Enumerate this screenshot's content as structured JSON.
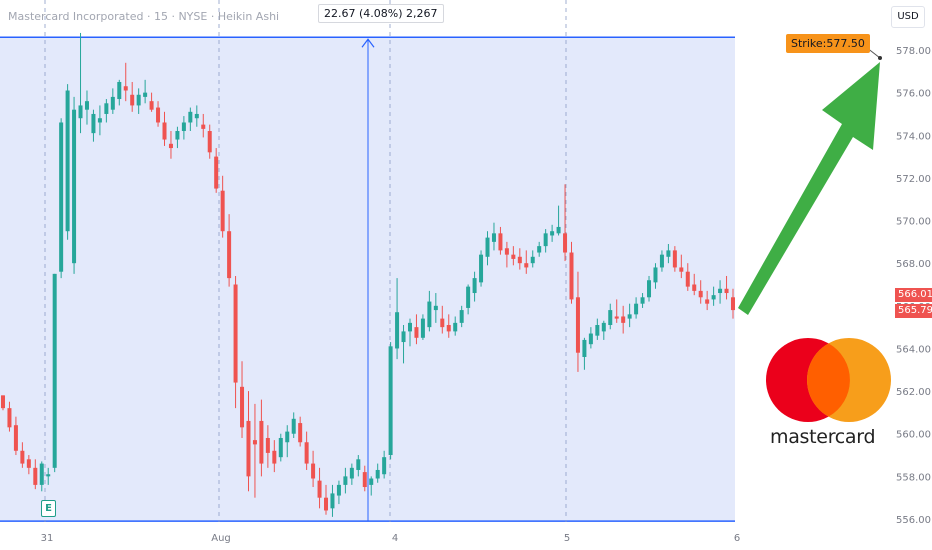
{
  "header": {
    "title": "Mastercard Incorporated · 15 · NYSE · Heikin Ashi",
    "currency": "USD"
  },
  "measure_label": "22.67 (4.08%) 2,267",
  "strike_label": "Strike:577.50",
  "price_tags": [
    "566.01",
    "565.79"
  ],
  "earnings_badge": "E",
  "logo": {
    "word": "mastercard",
    "colors": [
      "#eb001b",
      "#f79e1b",
      "#ff5f00"
    ]
  },
  "colors": {
    "up": "#26a69a",
    "down": "#ef5350",
    "range": "#2962ff",
    "arrow": "#3fae45",
    "strike": "#f7931a"
  },
  "chart_data": {
    "type": "candlestick",
    "title": "Mastercard Incorporated · 15 · NYSE · Heikin Ashi",
    "x_tick_labels": [
      "31",
      "Aug",
      "4",
      "5",
      "6"
    ],
    "y_tick_labels": [
      "578.00",
      "576.00",
      "574.00",
      "572.00",
      "570.00",
      "568.00",
      "566.00",
      "564.00",
      "562.00",
      "560.00",
      "558.00",
      "556.00"
    ],
    "ylim": [
      556,
      579.5
    ],
    "measured_range": {
      "low": 555.9,
      "high": 578.6,
      "change": 22.67,
      "percent": "4.08%",
      "bars": 2267
    },
    "strike": 577.5,
    "last_price": 566.01,
    "grid": false,
    "candles": [
      [
        561.8,
        561.8,
        561.1,
        561.2
      ],
      [
        561.2,
        561.5,
        560.1,
        560.3
      ],
      [
        560.4,
        560.8,
        559.0,
        559.2
      ],
      [
        559.2,
        559.6,
        558.4,
        558.6
      ],
      [
        558.8,
        559.0,
        558.1,
        558.4
      ],
      [
        558.4,
        558.8,
        557.4,
        557.6
      ],
      [
        557.6,
        558.7,
        557.3,
        558.6
      ],
      [
        558.0,
        558.4,
        557.6,
        558.1
      ],
      [
        558.4,
        567.5,
        558.2,
        567.5
      ],
      [
        567.6,
        574.8,
        567.3,
        574.6
      ],
      [
        569.5,
        576.4,
        569.1,
        576.1
      ],
      [
        568.0,
        575.8,
        567.5,
        575.2
      ],
      [
        574.8,
        578.8,
        574.1,
        575.4
      ],
      [
        575.2,
        576.1,
        574.5,
        575.6
      ],
      [
        574.1,
        575.2,
        573.7,
        575.0
      ],
      [
        574.6,
        575.4,
        574.0,
        574.8
      ],
      [
        575.0,
        575.7,
        574.6,
        575.5
      ],
      [
        575.2,
        576.2,
        575.0,
        575.8
      ],
      [
        575.7,
        576.6,
        575.4,
        576.5
      ],
      [
        576.3,
        577.4,
        575.6,
        576.1
      ],
      [
        575.9,
        576.5,
        575.1,
        575.4
      ],
      [
        575.4,
        576.2,
        575.0,
        575.9
      ],
      [
        575.8,
        576.6,
        575.5,
        576.0
      ],
      [
        575.6,
        576.0,
        575.1,
        575.2
      ],
      [
        575.3,
        575.6,
        574.4,
        574.6
      ],
      [
        574.6,
        575.1,
        573.5,
        573.8
      ],
      [
        573.6,
        574.2,
        572.9,
        573.4
      ],
      [
        573.8,
        574.4,
        573.4,
        574.2
      ],
      [
        574.2,
        574.9,
        573.8,
        574.6
      ],
      [
        574.6,
        575.3,
        574.2,
        575.1
      ],
      [
        574.8,
        575.4,
        574.4,
        575.0
      ],
      [
        574.5,
        575.0,
        573.9,
        574.3
      ],
      [
        574.2,
        574.5,
        572.9,
        573.2
      ],
      [
        573.0,
        573.4,
        571.3,
        571.5
      ],
      [
        571.4,
        572.1,
        569.2,
        569.5
      ],
      [
        569.5,
        570.3,
        566.9,
        567.3
      ],
      [
        567.0,
        567.4,
        561.2,
        562.4
      ],
      [
        562.2,
        563.4,
        559.8,
        560.3
      ],
      [
        560.6,
        562.0,
        557.3,
        558.0
      ],
      [
        559.7,
        561.4,
        557.0,
        559.5
      ],
      [
        560.6,
        561.6,
        558.0,
        558.6
      ],
      [
        559.8,
        560.4,
        558.4,
        559.1
      ],
      [
        559.2,
        559.7,
        558.2,
        558.6
      ],
      [
        558.9,
        560.0,
        558.7,
        559.8
      ],
      [
        559.6,
        560.4,
        558.9,
        560.1
      ],
      [
        560.0,
        561.0,
        559.8,
        560.7
      ],
      [
        560.5,
        560.8,
        559.4,
        559.6
      ],
      [
        559.6,
        560.1,
        558.3,
        558.6
      ],
      [
        558.6,
        559.2,
        557.5,
        557.9
      ],
      [
        557.8,
        558.4,
        556.5,
        557.0
      ],
      [
        557.0,
        557.6,
        556.2,
        556.4
      ],
      [
        556.5,
        557.6,
        556.1,
        557.2
      ],
      [
        557.1,
        557.8,
        556.7,
        557.6
      ],
      [
        557.6,
        558.4,
        557.2,
        558.0
      ],
      [
        557.9,
        558.6,
        557.6,
        558.4
      ],
      [
        558.3,
        559.0,
        558.0,
        558.8
      ],
      [
        558.2,
        558.5,
        557.3,
        557.5
      ],
      [
        557.6,
        558.0,
        557.1,
        557.9
      ],
      [
        557.9,
        558.6,
        557.7,
        558.3
      ],
      [
        558.1,
        559.2,
        557.9,
        558.9
      ],
      [
        559.0,
        564.3,
        558.8,
        564.1
      ],
      [
        564.0,
        567.3,
        563.5,
        565.7
      ],
      [
        564.3,
        565.1,
        563.3,
        564.8
      ],
      [
        564.8,
        565.4,
        564.1,
        565.2
      ],
      [
        565.0,
        565.6,
        564.2,
        564.5
      ],
      [
        564.5,
        565.6,
        564.4,
        565.4
      ],
      [
        565.0,
        566.7,
        564.8,
        566.2
      ],
      [
        565.8,
        566.6,
        565.2,
        566.0
      ],
      [
        565.4,
        566.0,
        564.7,
        565.0
      ],
      [
        565.1,
        565.6,
        564.5,
        564.8
      ],
      [
        564.8,
        565.5,
        564.6,
        565.2
      ],
      [
        565.2,
        566.0,
        565.0,
        565.8
      ],
      [
        565.9,
        567.0,
        565.6,
        566.9
      ],
      [
        566.6,
        567.6,
        566.2,
        567.3
      ],
      [
        567.1,
        568.6,
        566.9,
        568.4
      ],
      [
        568.3,
        569.5,
        567.9,
        569.2
      ],
      [
        569.0,
        569.9,
        568.6,
        569.4
      ],
      [
        569.4,
        569.7,
        568.4,
        568.6
      ],
      [
        568.7,
        569.0,
        567.8,
        568.4
      ],
      [
        568.4,
        568.8,
        567.9,
        568.2
      ],
      [
        568.3,
        568.7,
        567.7,
        568.0
      ],
      [
        568.0,
        568.6,
        567.5,
        567.8
      ],
      [
        568.0,
        568.6,
        567.8,
        568.3
      ],
      [
        568.5,
        569.0,
        568.3,
        568.8
      ],
      [
        568.8,
        569.6,
        568.5,
        569.4
      ],
      [
        569.3,
        569.8,
        569.0,
        569.5
      ],
      [
        569.4,
        570.7,
        569.3,
        569.7
      ],
      [
        569.4,
        571.7,
        568.1,
        568.5
      ],
      [
        568.5,
        569.0,
        566.1,
        566.3
      ],
      [
        566.4,
        567.6,
        562.9,
        563.8
      ],
      [
        563.6,
        564.5,
        563.0,
        564.4
      ],
      [
        564.2,
        565.0,
        564.0,
        564.7
      ],
      [
        564.6,
        565.4,
        564.4,
        565.1
      ],
      [
        564.8,
        565.3,
        564.4,
        565.2
      ],
      [
        565.1,
        566.1,
        564.9,
        565.8
      ],
      [
        565.5,
        566.3,
        565.2,
        565.4
      ],
      [
        565.5,
        566.0,
        564.7,
        565.2
      ],
      [
        565.4,
        566.1,
        565.0,
        565.6
      ],
      [
        565.6,
        566.4,
        565.4,
        566.1
      ],
      [
        566.1,
        566.6,
        565.9,
        566.4
      ],
      [
        566.4,
        567.4,
        566.2,
        567.2
      ],
      [
        567.1,
        568.0,
        566.8,
        567.8
      ],
      [
        567.8,
        568.6,
        567.6,
        568.4
      ],
      [
        568.3,
        568.9,
        568.0,
        568.6
      ],
      [
        568.6,
        568.8,
        567.6,
        567.8
      ],
      [
        567.8,
        568.4,
        567.3,
        567.6
      ],
      [
        567.6,
        568.0,
        566.7,
        566.9
      ],
      [
        567.0,
        567.5,
        566.5,
        566.7
      ],
      [
        566.7,
        567.2,
        566.1,
        566.4
      ],
      [
        566.3,
        566.7,
        565.8,
        566.1
      ],
      [
        566.3,
        566.9,
        566.0,
        566.5
      ],
      [
        566.6,
        567.2,
        566.1,
        566.8
      ],
      [
        566.8,
        567.4,
        566.3,
        566.6
      ],
      [
        566.4,
        566.8,
        565.4,
        565.8
      ]
    ]
  }
}
